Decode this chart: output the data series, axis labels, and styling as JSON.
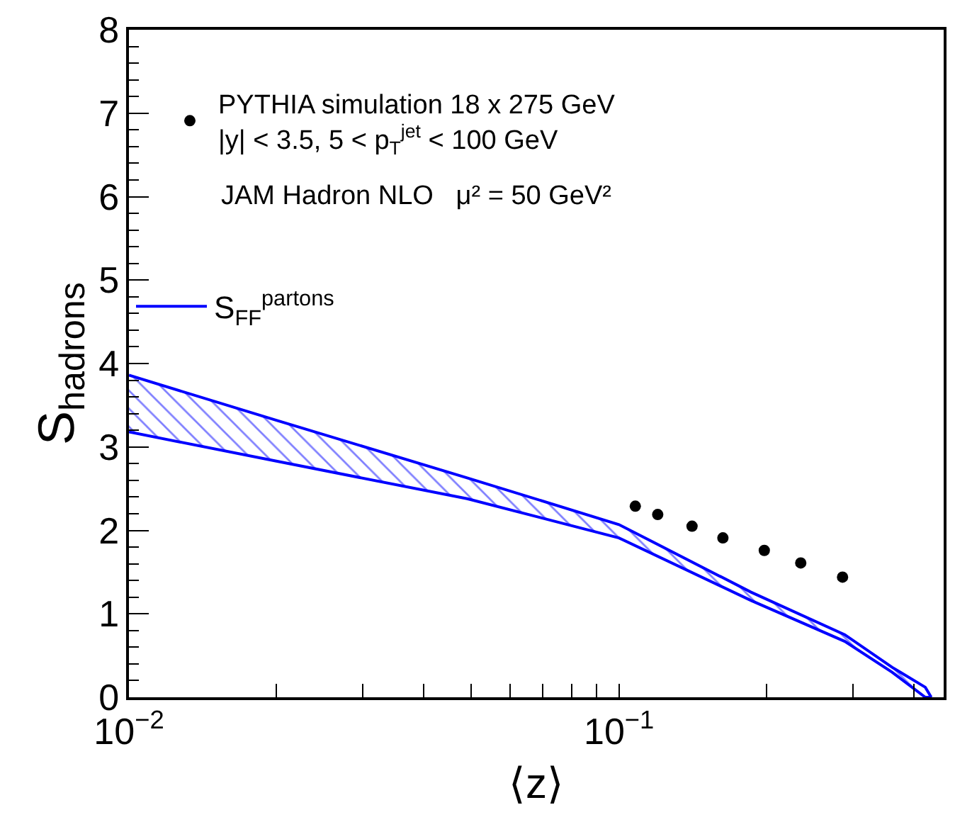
{
  "chart_data": {
    "type": "scatter",
    "xlabel": "⟨z⟩",
    "ylabel": "S$_{hadrons}$",
    "log": "x",
    "xlim": [
      0.01,
      0.46
    ],
    "ylim": [
      0,
      8
    ],
    "xticks": [
      {
        "value": 0.01,
        "label": "10$^{−2}$"
      },
      {
        "value": 0.02,
        "label": null
      },
      {
        "value": 0.03,
        "label": null
      },
      {
        "value": 0.04,
        "label": null
      },
      {
        "value": 0.05,
        "label": null
      },
      {
        "value": 0.06,
        "label": null
      },
      {
        "value": 0.07,
        "label": null
      },
      {
        "value": 0.08,
        "label": null
      },
      {
        "value": 0.09,
        "label": null
      },
      {
        "value": 0.1,
        "label": "10$^{−1}$"
      },
      {
        "value": 0.2,
        "label": null
      },
      {
        "value": 0.3,
        "label": null
      },
      {
        "value": 0.4,
        "label": null
      }
    ],
    "yticks": [
      0,
      1,
      2,
      3,
      4,
      5,
      6,
      7,
      8
    ],
    "legend": "top left",
    "marker": "circle",
    "annotations": [
      "JAM Hadron NLO   μ² = 50 GeV²"
    ],
    "series": [
      {
        "name": "PYTHIA simulation 18 x 275 GeV\n|y| < 3.5, 5 < p$_{T}$$^{jet}$ < 100 GeV",
        "color": "#000000",
        "x": [
          0.108,
          0.12,
          0.141,
          0.163,
          0.198,
          0.235,
          0.286
        ],
        "values": [
          2.29,
          2.19,
          2.05,
          1.91,
          1.76,
          1.61,
          1.44
        ]
      },
      {
        "name": "S$_{FF}$$^{partons}$",
        "type": "line",
        "marker": "none",
        "color": "#0000ff",
        "x": [
          0.01,
          0.02,
          0.049,
          0.1,
          0.186,
          0.289,
          0.361,
          0.422,
          0.434
        ],
        "values": [
          3.18,
          2.83,
          2.38,
          1.91,
          1.16,
          0.67,
          0.3,
          0,
          0
        ],
        "lower": [
          3.18,
          2.83,
          2.38,
          1.91,
          1.16,
          0.67,
          0.3,
          0,
          0
        ],
        "upper": [
          3.86,
          3.32,
          2.63,
          2.07,
          1.26,
          0.75,
          0.36,
          0.12,
          0
        ]
      },
      {
        "type": "line",
        "marker": "none",
        "color": "#0000ff",
        "x": [
          0.01,
          0.02,
          0.049,
          0.1,
          0.186,
          0.289,
          0.361,
          0.422,
          0.434
        ],
        "values": [
          3.86,
          3.32,
          2.63,
          2.07,
          1.26,
          0.75,
          0.36,
          0.12,
          0
        ]
      }
    ]
  }
}
